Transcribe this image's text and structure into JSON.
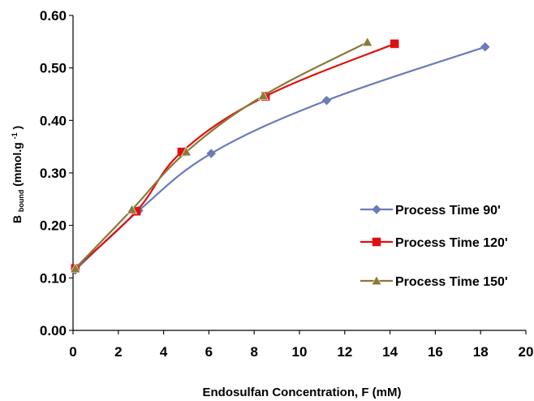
{
  "chart_data": {
    "type": "scatter",
    "xlabel": "Endosulfan Concentration, F (mM)",
    "ylabel": {
      "main": "B",
      "subscript": "bound",
      "rest": "(mmol.g",
      "superscript": "-1",
      "close": ")"
    },
    "xlim": [
      0,
      20
    ],
    "ylim": [
      0,
      0.6
    ],
    "x_ticks": [
      "0",
      "2",
      "4",
      "6",
      "8",
      "10",
      "12",
      "14",
      "16",
      "18",
      "20"
    ],
    "y_ticks": [
      "0.00",
      "0.10",
      "0.20",
      "0.30",
      "0.40",
      "0.50",
      "0.60"
    ],
    "grid": false,
    "legend_position": "right",
    "series": [
      {
        "name": "Process Time 90'",
        "color": "#6B7CB8",
        "marker": "diamond",
        "x": [
          0.1,
          2.9,
          6.1,
          11.2,
          18.2
        ],
        "y": [
          0.115,
          0.228,
          0.337,
          0.438,
          0.54
        ]
      },
      {
        "name": "Process Time 120'",
        "color": "#E01010",
        "marker": "square",
        "x": [
          0.1,
          2.8,
          4.8,
          8.5,
          14.2
        ],
        "y": [
          0.118,
          0.227,
          0.34,
          0.446,
          0.546
        ]
      },
      {
        "name": "Process Time 150'",
        "color": "#8A7A3A",
        "marker": "triangle",
        "x": [
          0.1,
          2.6,
          5.0,
          8.4,
          13.0
        ],
        "y": [
          0.118,
          0.23,
          0.34,
          0.447,
          0.549
        ]
      }
    ]
  }
}
